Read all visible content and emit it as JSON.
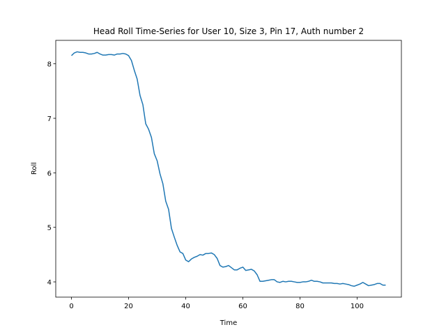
{
  "chart_data": {
    "type": "line",
    "title": "Head Roll Time-Series for User 10, Size 3, Pin 17, Auth number 2",
    "xlabel": "Time",
    "ylabel": "Roll",
    "x": [
      0,
      1,
      2,
      3,
      4,
      5,
      6,
      7,
      8,
      9,
      10,
      11,
      12,
      13,
      14,
      15,
      16,
      17,
      18,
      19,
      20,
      21,
      22,
      23,
      24,
      25,
      26,
      27,
      28,
      29,
      30,
      31,
      32,
      33,
      34,
      35,
      36,
      37,
      38,
      39,
      40,
      41,
      42,
      43,
      44,
      45,
      46,
      47,
      48,
      49,
      50,
      51,
      52,
      53,
      54,
      55,
      56,
      57,
      58,
      59,
      60,
      61,
      62,
      63,
      64,
      65,
      66,
      67,
      68,
      69,
      70,
      71,
      72,
      73,
      74,
      75,
      76,
      77,
      78,
      79,
      80,
      81,
      82,
      83,
      84,
      85,
      86,
      87,
      88,
      89,
      90,
      91,
      92,
      93,
      94,
      95,
      96,
      97,
      98,
      99,
      100,
      101,
      102,
      103,
      104,
      105,
      106,
      107,
      108,
      109,
      110
    ],
    "series": [
      {
        "name": "Roll",
        "color": "#1f77b4",
        "values": [
          8.15,
          8.2,
          8.22,
          8.21,
          8.21,
          8.2,
          8.18,
          8.18,
          8.19,
          8.21,
          8.18,
          8.16,
          8.16,
          8.17,
          8.17,
          8.16,
          8.18,
          8.18,
          8.19,
          8.18,
          8.15,
          8.06,
          7.88,
          7.72,
          7.42,
          7.25,
          6.9,
          6.8,
          6.65,
          6.35,
          6.22,
          5.98,
          5.8,
          5.48,
          5.33,
          4.98,
          4.82,
          4.67,
          4.55,
          4.52,
          4.4,
          4.37,
          4.42,
          4.45,
          4.47,
          4.5,
          4.49,
          4.52,
          4.52,
          4.53,
          4.5,
          4.43,
          4.3,
          4.27,
          4.28,
          4.3,
          4.26,
          4.22,
          4.22,
          4.25,
          4.27,
          4.21,
          4.22,
          4.23,
          4.2,
          4.13,
          4.01,
          4.01,
          4.02,
          4.03,
          4.04,
          4.04,
          4.0,
          3.99,
          4.01,
          4.0,
          4.01,
          4.01,
          4.0,
          3.99,
          3.99,
          4.0,
          4.0,
          4.01,
          4.03,
          4.01,
          4.01,
          4.0,
          3.98,
          3.98,
          3.98,
          3.98,
          3.97,
          3.97,
          3.96,
          3.97,
          3.96,
          3.95,
          3.93,
          3.92,
          3.94,
          3.96,
          3.99,
          3.96,
          3.93,
          3.94,
          3.95,
          3.97,
          3.97,
          3.94,
          3.94
        ]
      }
    ],
    "xlim": [
      -5.5,
      115.5
    ],
    "ylim": [
      3.72,
      8.43
    ],
    "xticks": [
      0,
      20,
      40,
      60,
      80,
      100
    ],
    "yticks": [
      4,
      5,
      6,
      7,
      8
    ],
    "grid": false
  }
}
